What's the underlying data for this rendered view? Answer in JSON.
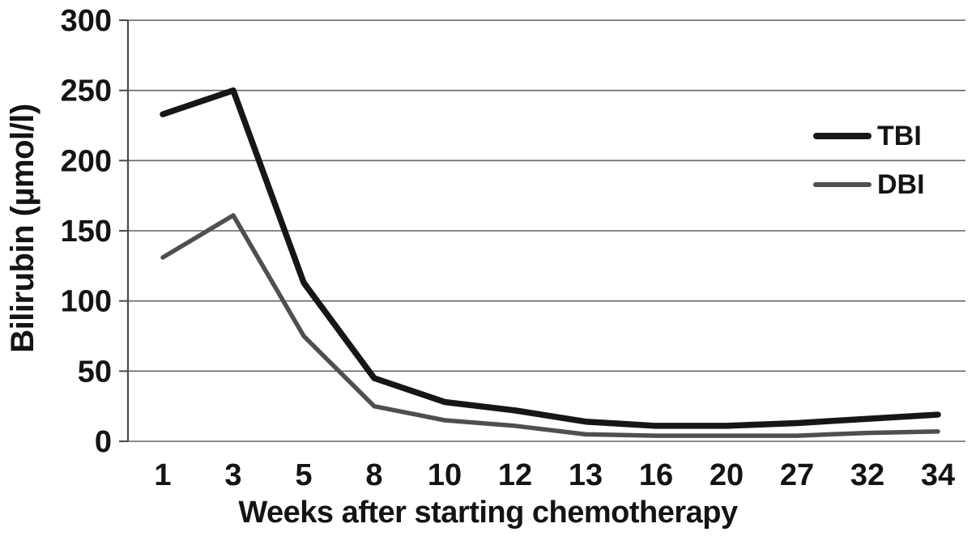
{
  "chart_data": {
    "type": "line",
    "xlabel": "Weeks after starting chemotherapy",
    "ylabel": "Bilirubin (µmol/l)",
    "categories": [
      "1",
      "3",
      "5",
      "8",
      "10",
      "12",
      "13",
      "16",
      "20",
      "27",
      "32",
      "34"
    ],
    "ylim": [
      0,
      300
    ],
    "yticks": [
      0,
      50,
      100,
      150,
      200,
      250,
      300
    ],
    "grid": "horizontal",
    "legend_position": "right-inside",
    "series": [
      {
        "name": "TBI",
        "color": "#161616",
        "stroke_width": 7.5,
        "values": [
          233,
          250,
          113,
          45,
          28,
          22,
          14,
          11,
          11,
          13,
          16,
          19
        ]
      },
      {
        "name": "DBI",
        "color": "#4f4f4f",
        "stroke_width": 5.5,
        "values": [
          131,
          161,
          75,
          25,
          15,
          11,
          5,
          4,
          4,
          4,
          6,
          7
        ]
      }
    ],
    "axis_color": "#4a4a4a",
    "grid_color": "#646464",
    "text_color": "#141414"
  }
}
